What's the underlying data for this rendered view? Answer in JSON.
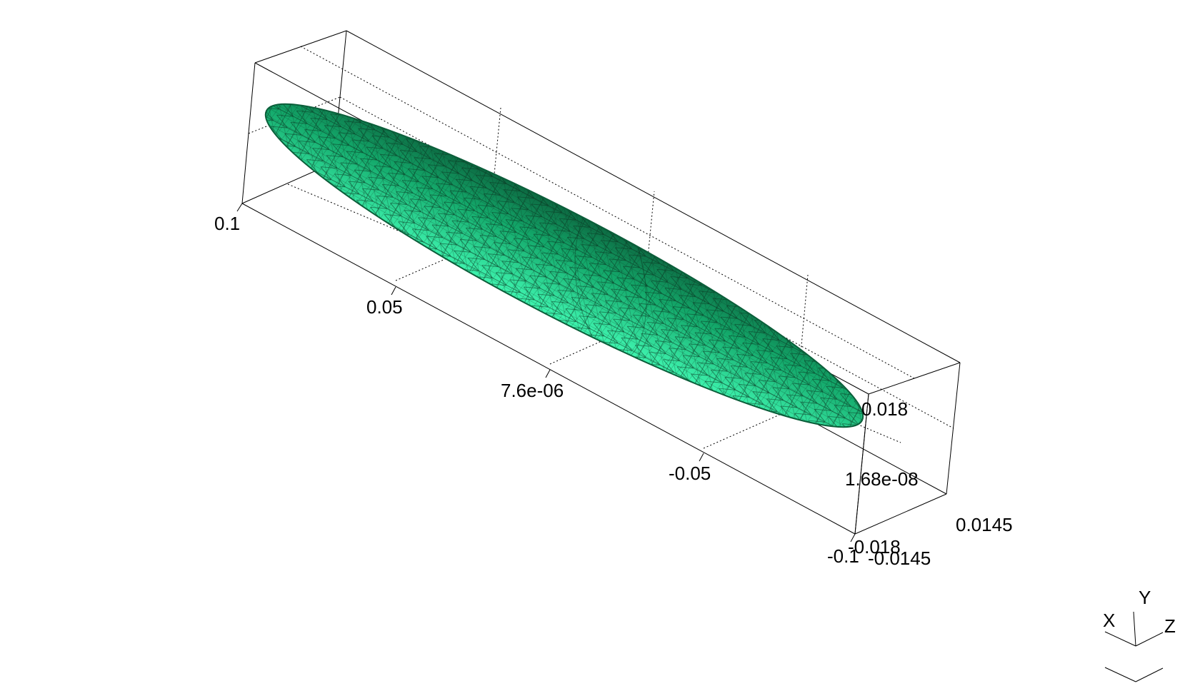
{
  "scene": {
    "object": "ellipsoid-wireframe-mesh",
    "colors": {
      "mesh_light": "#2ee6a0",
      "mesh_mid": "#13b873",
      "mesh_dark": "#0b5e3a",
      "mesh_lines": "#0b3d24",
      "axes": "#000000",
      "background": "#ffffff"
    }
  },
  "axes": {
    "x_ticks": [
      "0.1",
      "0.05",
      "7.6e-06",
      "-0.05",
      "-0.1"
    ],
    "y_ticks": [
      "0.018",
      "1.68e-08",
      "-0.018"
    ],
    "z_ticks": [
      "0.0145",
      "-0.0145"
    ]
  },
  "triad": {
    "x_label": "X",
    "y_label": "Y",
    "z_label": "Z"
  }
}
